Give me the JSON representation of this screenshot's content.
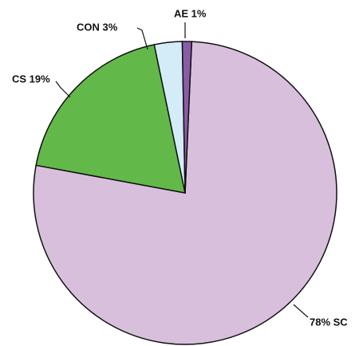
{
  "chart_data": {
    "type": "pie",
    "values": [
      78,
      19,
      3,
      1
    ],
    "value_labels": [
      "78% SC",
      "CS 19%",
      "CON 3%",
      "AE 1%"
    ],
    "colors": [
      "#d8c0dc",
      "#62b94a",
      "#d4ecf8",
      "#8a5ca6"
    ]
  }
}
